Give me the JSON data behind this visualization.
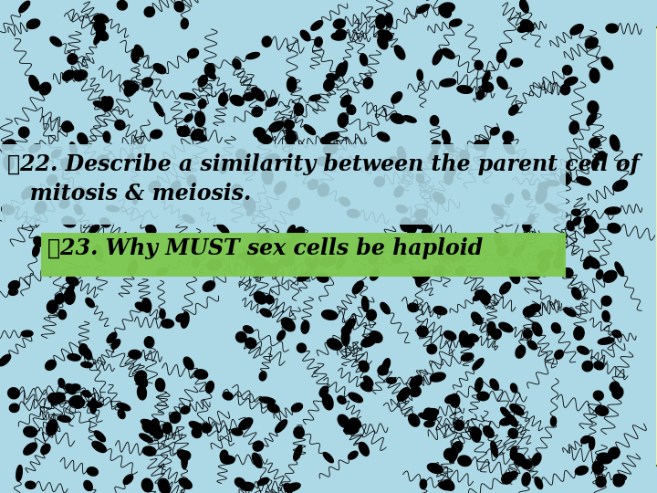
{
  "bg_color": "#ADD8E6",
  "yellow_color": "#FFFFAA",
  "yellow_border": "#556B00",
  "box1_color": "#ADD8E6",
  "box1_text_line1": "❤22. Describe a similarity between the parent cell of",
  "box1_text_line2": "   mitosis & meiosis.",
  "box2_color": "#7EC850",
  "box2_text": "❤23. Why MUST sex cells be haploid",
  "text_color": "#000000",
  "font_size1": 17,
  "font_size2": 17,
  "n_sperm": 500,
  "seed": 99
}
